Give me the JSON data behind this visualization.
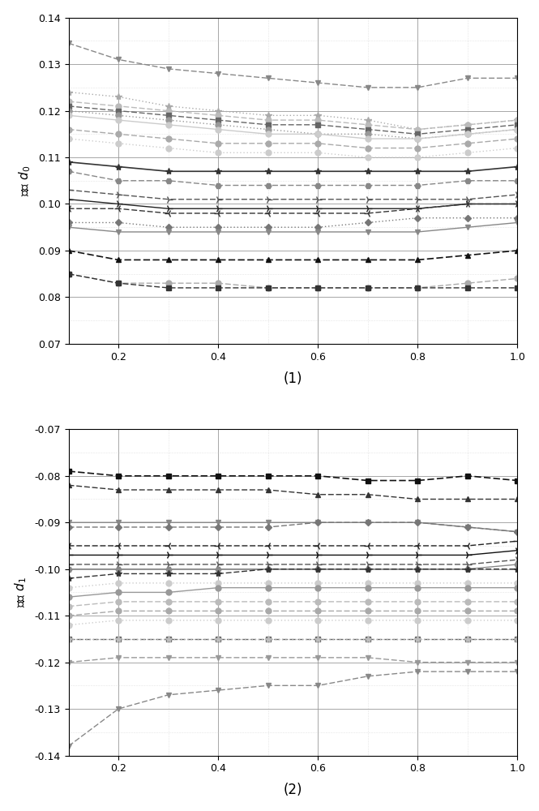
{
  "x": [
    0.1,
    0.2,
    0.3,
    0.4,
    0.5,
    0.6,
    0.7,
    0.8,
    0.9,
    1.0
  ],
  "chart1_title": "(1)",
  "chart2_title": "(2)",
  "ylabel1": "参数 $d_0$",
  "ylabel2": "参数 $d_1$",
  "ylim1": [
    0.07,
    0.14
  ],
  "ylim2": [
    -0.14,
    -0.07
  ],
  "chart1_series": [
    {
      "values": [
        0.1345,
        0.131,
        0.129,
        0.128,
        0.127,
        0.126,
        0.125,
        0.125,
        0.127,
        0.127
      ],
      "color": "#888888",
      "marker": "v",
      "ls": "dashed",
      "lw": 1.0,
      "ms": 5
    },
    {
      "values": [
        0.124,
        0.123,
        0.121,
        0.12,
        0.119,
        0.119,
        0.118,
        0.116,
        0.117,
        0.118
      ],
      "color": "#aaaaaa",
      "marker": "*",
      "ls": "dotted",
      "lw": 1.0,
      "ms": 6
    },
    {
      "values": [
        0.122,
        0.121,
        0.12,
        0.119,
        0.118,
        0.118,
        0.117,
        0.116,
        0.117,
        0.118
      ],
      "color": "#bbbbbb",
      "marker": "o",
      "ls": "dashed",
      "lw": 1.0,
      "ms": 5
    },
    {
      "values": [
        0.121,
        0.12,
        0.119,
        0.118,
        0.117,
        0.117,
        0.116,
        0.115,
        0.116,
        0.117
      ],
      "color": "#666666",
      "marker": "s",
      "ls": "dashed",
      "lw": 1.0,
      "ms": 5
    },
    {
      "values": [
        0.12,
        0.119,
        0.118,
        0.117,
        0.116,
        0.115,
        0.115,
        0.114,
        0.115,
        0.116
      ],
      "color": "#999999",
      "marker": "o",
      "ls": "dotted",
      "lw": 1.0,
      "ms": 5
    },
    {
      "values": [
        0.119,
        0.118,
        0.117,
        0.116,
        0.115,
        0.115,
        0.114,
        0.114,
        0.115,
        0.116
      ],
      "color": "#cccccc",
      "marker": "o",
      "ls": "solid",
      "lw": 1.0,
      "ms": 5
    },
    {
      "values": [
        0.116,
        0.115,
        0.114,
        0.113,
        0.113,
        0.113,
        0.112,
        0.112,
        0.113,
        0.114
      ],
      "color": "#aaaaaa",
      "marker": "o",
      "ls": "dashed",
      "lw": 1.0,
      "ms": 5
    },
    {
      "values": [
        0.114,
        0.113,
        0.112,
        0.111,
        0.111,
        0.111,
        0.11,
        0.11,
        0.111,
        0.112
      ],
      "color": "#cccccc",
      "marker": "o",
      "ls": "dotted",
      "lw": 1.0,
      "ms": 5
    },
    {
      "values": [
        0.109,
        0.108,
        0.107,
        0.107,
        0.107,
        0.107,
        0.107,
        0.107,
        0.107,
        0.108
      ],
      "color": "#333333",
      "marker": "*",
      "ls": "solid",
      "lw": 1.2,
      "ms": 6
    },
    {
      "values": [
        0.107,
        0.105,
        0.105,
        0.104,
        0.104,
        0.104,
        0.104,
        0.104,
        0.105,
        0.105
      ],
      "color": "#888888",
      "marker": "H",
      "ls": "dashed",
      "lw": 1.0,
      "ms": 5
    },
    {
      "values": [
        0.103,
        0.102,
        0.101,
        0.101,
        0.101,
        0.101,
        0.101,
        0.101,
        0.101,
        0.102
      ],
      "color": "#555555",
      "marker": "4",
      "ls": "dashed",
      "lw": 1.0,
      "ms": 7
    },
    {
      "values": [
        0.101,
        0.1,
        0.099,
        0.099,
        0.099,
        0.099,
        0.099,
        0.099,
        0.1,
        0.1
      ],
      "color": "#222222",
      "marker": "4",
      "ls": "solid",
      "lw": 1.0,
      "ms": 7
    },
    {
      "values": [
        0.099,
        0.099,
        0.098,
        0.098,
        0.098,
        0.098,
        0.098,
        0.099,
        0.1,
        0.1
      ],
      "color": "#333333",
      "marker": "3",
      "ls": "dashed",
      "lw": 1.0,
      "ms": 7
    },
    {
      "values": [
        0.096,
        0.096,
        0.095,
        0.095,
        0.095,
        0.095,
        0.096,
        0.097,
        0.097,
        0.097
      ],
      "color": "#777777",
      "marker": "D",
      "ls": "dotted",
      "lw": 1.0,
      "ms": 4
    },
    {
      "values": [
        0.095,
        0.094,
        0.094,
        0.094,
        0.094,
        0.094,
        0.094,
        0.094,
        0.095,
        0.096
      ],
      "color": "#888888",
      "marker": "v",
      "ls": "solid",
      "lw": 1.0,
      "ms": 5
    },
    {
      "values": [
        0.09,
        0.088,
        0.088,
        0.088,
        0.088,
        0.088,
        0.088,
        0.088,
        0.089,
        0.09
      ],
      "color": "#111111",
      "marker": "^",
      "ls": "dashed",
      "lw": 1.2,
      "ms": 5
    },
    {
      "values": [
        0.085,
        0.083,
        0.083,
        0.083,
        0.082,
        0.082,
        0.082,
        0.082,
        0.083,
        0.084
      ],
      "color": "#aaaaaa",
      "marker": "o",
      "ls": "dashed",
      "lw": 1.0,
      "ms": 5
    },
    {
      "values": [
        0.085,
        0.083,
        0.082,
        0.082,
        0.082,
        0.082,
        0.082,
        0.082,
        0.082,
        0.082
      ],
      "color": "#333333",
      "marker": "s",
      "ls": "dashed",
      "lw": 1.0,
      "ms": 5
    }
  ],
  "chart2_series": [
    {
      "values": [
        -0.079,
        -0.08,
        -0.08,
        -0.08,
        -0.08,
        -0.08,
        -0.081,
        -0.081,
        -0.08,
        -0.081
      ],
      "color": "#111111",
      "marker": "s",
      "ls": "dashed",
      "lw": 1.2,
      "ms": 5
    },
    {
      "values": [
        -0.082,
        -0.083,
        -0.083,
        -0.083,
        -0.083,
        -0.084,
        -0.084,
        -0.085,
        -0.085,
        -0.085
      ],
      "color": "#333333",
      "marker": "^",
      "ls": "dashed",
      "lw": 1.0,
      "ms": 5
    },
    {
      "values": [
        -0.09,
        -0.09,
        -0.09,
        -0.09,
        -0.09,
        -0.09,
        -0.09,
        -0.09,
        -0.091,
        -0.092
      ],
      "color": "#888888",
      "marker": "v",
      "ls": "solid",
      "lw": 1.0,
      "ms": 5
    },
    {
      "values": [
        -0.091,
        -0.091,
        -0.091,
        -0.091,
        -0.091,
        -0.09,
        -0.09,
        -0.09,
        -0.091,
        -0.092
      ],
      "color": "#777777",
      "marker": "D",
      "ls": "dashed",
      "lw": 1.0,
      "ms": 4
    },
    {
      "values": [
        -0.095,
        -0.095,
        -0.095,
        -0.095,
        -0.095,
        -0.095,
        -0.095,
        -0.095,
        -0.095,
        -0.094
      ],
      "color": "#222222",
      "marker": "3",
      "ls": "dashed",
      "lw": 1.0,
      "ms": 7
    },
    {
      "values": [
        -0.097,
        -0.097,
        -0.097,
        -0.097,
        -0.097,
        -0.097,
        -0.097,
        -0.097,
        -0.097,
        -0.096
      ],
      "color": "#111111",
      "marker": "4",
      "ls": "solid",
      "lw": 1.0,
      "ms": 7
    },
    {
      "values": [
        -0.099,
        -0.099,
        -0.099,
        -0.099,
        -0.099,
        -0.099,
        -0.099,
        -0.099,
        -0.099,
        -0.098
      ],
      "color": "#555555",
      "marker": "4",
      "ls": "dashed",
      "lw": 1.0,
      "ms": 7
    },
    {
      "values": [
        -0.1,
        -0.1,
        -0.1,
        -0.1,
        -0.1,
        -0.1,
        -0.1,
        -0.1,
        -0.1,
        -0.099
      ],
      "color": "#888888",
      "marker": "H",
      "ls": "solid",
      "lw": 1.0,
      "ms": 5
    },
    {
      "values": [
        -0.102,
        -0.101,
        -0.101,
        -0.101,
        -0.1,
        -0.1,
        -0.1,
        -0.1,
        -0.1,
        -0.1
      ],
      "color": "#333333",
      "marker": "*",
      "ls": "dashed",
      "lw": 1.0,
      "ms": 6
    },
    {
      "values": [
        -0.104,
        -0.103,
        -0.103,
        -0.103,
        -0.103,
        -0.103,
        -0.103,
        -0.103,
        -0.103,
        -0.103
      ],
      "color": "#cccccc",
      "marker": "o",
      "ls": "dotted",
      "lw": 1.0,
      "ms": 5
    },
    {
      "values": [
        -0.106,
        -0.105,
        -0.105,
        -0.104,
        -0.104,
        -0.104,
        -0.104,
        -0.104,
        -0.104,
        -0.104
      ],
      "color": "#999999",
      "marker": "o",
      "ls": "solid",
      "lw": 1.0,
      "ms": 5
    },
    {
      "values": [
        -0.108,
        -0.107,
        -0.107,
        -0.107,
        -0.107,
        -0.107,
        -0.107,
        -0.107,
        -0.107,
        -0.107
      ],
      "color": "#bbbbbb",
      "marker": "o",
      "ls": "dashed",
      "lw": 1.0,
      "ms": 5
    },
    {
      "values": [
        -0.11,
        -0.109,
        -0.109,
        -0.109,
        -0.109,
        -0.109,
        -0.109,
        -0.109,
        -0.109,
        -0.109
      ],
      "color": "#aaaaaa",
      "marker": "o",
      "ls": "dashed",
      "lw": 1.0,
      "ms": 5
    },
    {
      "values": [
        -0.112,
        -0.111,
        -0.111,
        -0.111,
        -0.111,
        -0.111,
        -0.111,
        -0.111,
        -0.111,
        -0.111
      ],
      "color": "#cccccc",
      "marker": "o",
      "ls": "dotted",
      "lw": 1.0,
      "ms": 5
    },
    {
      "values": [
        -0.115,
        -0.115,
        -0.115,
        -0.115,
        -0.115,
        -0.115,
        -0.115,
        -0.115,
        -0.115,
        -0.115
      ],
      "color": "#666666",
      "marker": "s",
      "ls": "dashed",
      "lw": 1.0,
      "ms": 5
    },
    {
      "values": [
        -0.115,
        -0.115,
        -0.115,
        -0.115,
        -0.115,
        -0.115,
        -0.115,
        -0.115,
        -0.115,
        -0.115
      ],
      "color": "#bbbbbb",
      "marker": "*",
      "ls": "dotted",
      "lw": 1.0,
      "ms": 6
    },
    {
      "values": [
        -0.12,
        -0.119,
        -0.119,
        -0.119,
        -0.119,
        -0.119,
        -0.119,
        -0.12,
        -0.12,
        -0.12
      ],
      "color": "#999999",
      "marker": "v",
      "ls": "dashed",
      "lw": 1.0,
      "ms": 5
    },
    {
      "values": [
        -0.138,
        -0.13,
        -0.127,
        -0.126,
        -0.125,
        -0.125,
        -0.123,
        -0.122,
        -0.122,
        -0.122
      ],
      "color": "#888888",
      "marker": "v",
      "ls": "dashed",
      "lw": 1.0,
      "ms": 5
    }
  ],
  "major_grid_color": "#999999",
  "minor_grid_color": "#cccccc",
  "major_grid_ls": "solid",
  "minor_grid_ls": "dotted"
}
